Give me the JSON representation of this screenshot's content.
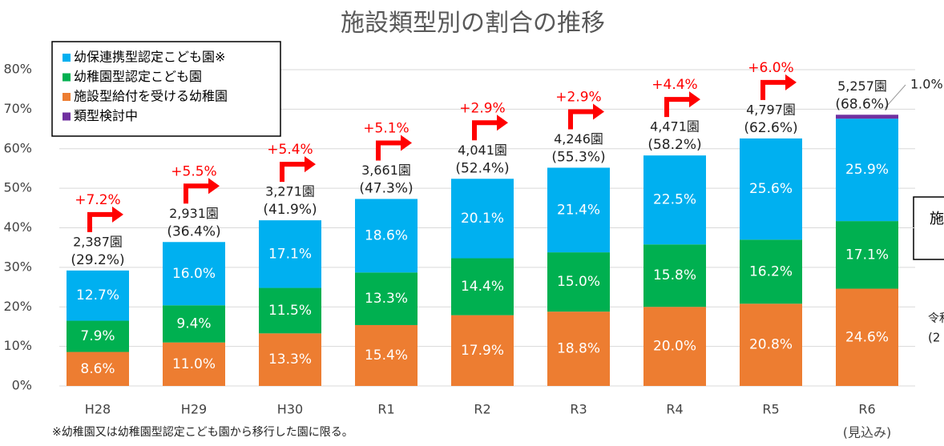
{
  "chart_data": {
    "type": "stacked-bar",
    "title": "施設類型別の割合の推移",
    "categories": [
      "H28",
      "H29",
      "H30",
      "R1",
      "R2",
      "R3",
      "R4",
      "R5",
      "R6"
    ],
    "category_note": "(見込み)",
    "series": [
      {
        "name": "幼保連携型認定こども園※",
        "color": "#00b0f0",
        "values": [
          12.7,
          16.0,
          17.1,
          18.6,
          20.1,
          21.4,
          22.5,
          25.6,
          25.9
        ],
        "value_labels": [
          "12.7%",
          "16.0%",
          "17.1%",
          "18.6%",
          "20.1%",
          "21.4%",
          "22.5%",
          "25.6%",
          "25.9%"
        ]
      },
      {
        "name": "幼稚園型認定こども園",
        "color": "#00b050",
        "values": [
          7.9,
          9.4,
          11.5,
          13.3,
          14.4,
          15.0,
          15.8,
          16.2,
          17.1
        ],
        "value_labels": [
          "7.9%",
          "9.4%",
          "11.5%",
          "13.3%",
          "14.4%",
          "15.0%",
          "15.8%",
          "16.2%",
          "17.1%"
        ]
      },
      {
        "name": "施設型給付を受ける幼稚園",
        "color": "#ed7d31",
        "values": [
          8.6,
          11.0,
          13.3,
          15.4,
          17.9,
          18.8,
          20.0,
          20.8,
          24.6
        ],
        "value_labels": [
          "8.6%",
          "11.0%",
          "13.3%",
          "15.4%",
          "17.9%",
          "18.8%",
          "20.0%",
          "20.8%",
          "24.6%"
        ]
      },
      {
        "name": "類型検討中",
        "color": "#7030a0",
        "values": [
          null,
          null,
          null,
          null,
          null,
          null,
          null,
          null,
          1.0
        ],
        "value_labels": [
          null,
          null,
          null,
          null,
          null,
          null,
          null,
          null,
          "1.0%"
        ]
      }
    ],
    "count_labels": [
      "2,387園",
      "2,931園",
      "3,271園",
      "3,661園",
      "4,041園",
      "4,246園",
      "4,471園",
      "4,797園",
      "5,257園"
    ],
    "share_labels": [
      "(29.2%)",
      "(36.4%)",
      "(41.9%)",
      "(47.3%)",
      "(52.4%)",
      "(55.3%)",
      "(58.2%)",
      "(62.6%)",
      "(68.6%)"
    ],
    "increase_labels": [
      "+7.2%",
      "+5.5%",
      "+5.4%",
      "+5.1%",
      "+2.9%",
      "+2.9%",
      "+4.4%",
      "+6.0%"
    ],
    "ylim": [
      0,
      80
    ],
    "yticks": [
      {
        "value": 0,
        "label": "0%"
      },
      {
        "value": 10,
        "label": "10%"
      },
      {
        "value": 20,
        "label": "20%"
      },
      {
        "value": 30,
        "label": "30%"
      },
      {
        "value": 40,
        "label": "40%"
      },
      {
        "value": 50,
        "label": "50%"
      },
      {
        "value": 60,
        "label": "60%"
      },
      {
        "value": 70,
        "label": "70%"
      },
      {
        "value": 80,
        "label": "80%"
      }
    ],
    "grid": true,
    "legend": "top-left",
    "footnote": "※幼稚園又は幼稚園型認定こども園から移行した園に限る。",
    "side_box_text": "施",
    "side_note_lines": [
      "令和",
      "(2"
    ]
  }
}
